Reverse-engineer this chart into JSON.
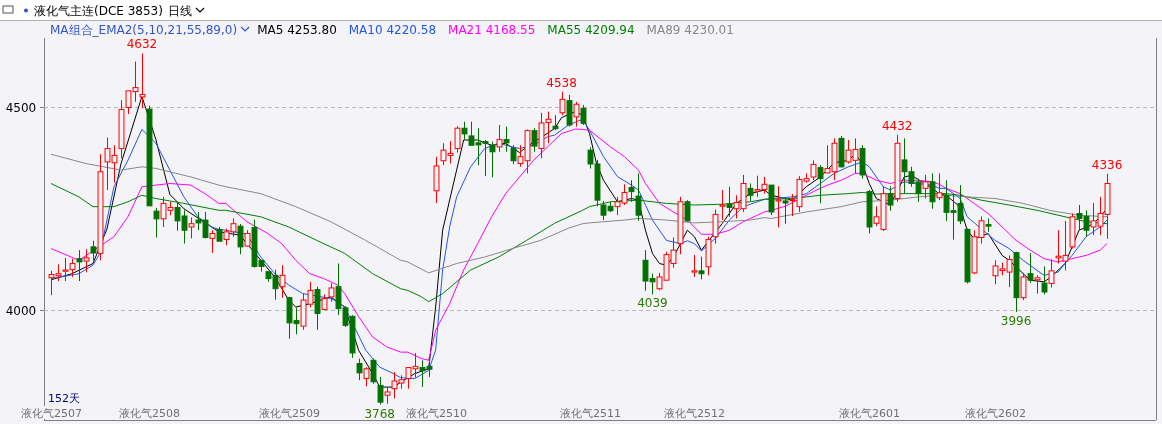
{
  "chart_data": {
    "type": "candlestick",
    "title": "液化气主连(DCE 3853)",
    "subtitle": "日线",
    "legend_title": "MA组合_EMA2(5,10,21,55,89,0)",
    "categories": [
      "液化气2507",
      null,
      null,
      null,
      null,
      null,
      null,
      null,
      null,
      null,
      null,
      null,
      null,
      null,
      "液化气2508",
      null,
      null,
      null,
      null,
      null,
      null,
      null,
      null,
      null,
      null,
      null,
      null,
      null,
      null,
      null,
      null,
      null,
      null,
      null,
      "液化气2509",
      null,
      null,
      null,
      null,
      null,
      null,
      null,
      null,
      null,
      null,
      null,
      null,
      null,
      null,
      null,
      null,
      null,
      null,
      null,
      null,
      "液化气2510",
      null,
      null,
      null,
      null,
      null,
      null,
      null,
      null,
      null,
      null,
      null,
      null,
      null,
      null,
      null,
      null,
      null,
      null,
      null,
      null,
      null,
      "液化气2511",
      null,
      null,
      null,
      null,
      null,
      null,
      null,
      null,
      null,
      null,
      null,
      null,
      null,
      null,
      "液化气2512",
      null,
      null,
      null,
      null,
      null,
      null,
      null,
      null,
      null,
      null,
      null,
      null,
      null,
      null,
      null,
      null,
      null,
      null,
      null,
      null,
      null,
      null,
      null,
      null,
      "液化气2601",
      null,
      null,
      null,
      null,
      null,
      null,
      null,
      null,
      null,
      null,
      null,
      null,
      null,
      null,
      null,
      null,
      null,
      "液化气2602",
      null,
      null,
      null,
      null,
      null,
      null,
      null,
      null,
      null,
      null,
      null,
      null,
      null,
      null,
      null,
      null
    ],
    "ohlc": [
      [
        4080,
        4097,
        4037,
        4088
      ],
      [
        4085,
        4113,
        4072,
        4090
      ],
      [
        4096,
        4129,
        4072,
        4099
      ],
      [
        4100,
        4127,
        4082,
        4115
      ],
      [
        4127,
        4148,
        4072,
        4119
      ],
      [
        4121,
        4150,
        4093,
        4129
      ],
      [
        4156,
        4171,
        4123,
        4141
      ],
      [
        4140,
        4384,
        4123,
        4341
      ],
      [
        4365,
        4425,
        4296,
        4398
      ],
      [
        4363,
        4406,
        4314,
        4381
      ],
      [
        4398,
        4517,
        4374,
        4494
      ],
      [
        4499,
        4540,
        4483,
        4540
      ],
      [
        4538,
        4612,
        4513,
        4548
      ],
      [
        4525,
        4632,
        4497,
        4531
      ],
      [
        4495,
        4503,
        4257,
        4257
      ],
      [
        4244,
        4252,
        4179,
        4225
      ],
      [
        4225,
        4279,
        4205,
        4263
      ],
      [
        4246,
        4267,
        4234,
        4253
      ],
      [
        4253,
        4267,
        4196,
        4220
      ],
      [
        4232,
        4246,
        4164,
        4197
      ],
      [
        4205,
        4228,
        4177,
        4213
      ],
      [
        4222,
        4242,
        4197,
        4215
      ],
      [
        4222,
        4242,
        4177,
        4179
      ],
      [
        4177,
        4197,
        4141,
        4189
      ],
      [
        4199,
        4205,
        4170,
        4170
      ],
      [
        4174,
        4201,
        4160,
        4193
      ],
      [
        4193,
        4226,
        4181,
        4213
      ],
      [
        4207,
        4212,
        4138,
        4156
      ],
      [
        4158,
        4197,
        4156,
        4189
      ],
      [
        4204,
        4223,
        4105,
        4108
      ],
      [
        4123,
        4123,
        4095,
        4108
      ],
      [
        4095,
        4095,
        4070,
        4078
      ],
      [
        4086,
        4100,
        4026,
        4053
      ],
      [
        4058,
        4111,
        4031,
        4086
      ],
      [
        4031,
        4033,
        3930,
        3969
      ],
      [
        3975,
        4007,
        3941,
        3967
      ],
      [
        3961,
        4041,
        3952,
        4025
      ],
      [
        4015,
        4070,
        4007,
        4049
      ],
      [
        4051,
        4058,
        3952,
        3992
      ],
      [
        4002,
        4039,
        4002,
        4029
      ],
      [
        4033,
        4066,
        4021,
        4055
      ],
      [
        4058,
        4115,
        3988,
        4004
      ],
      [
        4006,
        4010,
        3959,
        3963
      ],
      [
        3985,
        3988,
        3883,
        3895
      ],
      [
        3869,
        3881,
        3828,
        3846
      ],
      [
        3832,
        3860,
        3813,
        3856
      ],
      [
        3877,
        3881,
        3819,
        3824
      ],
      [
        3815,
        3836,
        3768,
        3774
      ],
      [
        3791,
        3811,
        3770,
        3799
      ],
      [
        3807,
        3848,
        3783,
        3826
      ],
      [
        3821,
        3840,
        3807,
        3829
      ],
      [
        3832,
        3860,
        3807,
        3859
      ],
      [
        3856,
        3895,
        3834,
        3862
      ],
      [
        3859,
        3877,
        3811,
        3851
      ],
      [
        3862,
        3885,
        3836,
        3855
      ],
      [
        4294,
        4378,
        4264,
        4355
      ],
      [
        4368,
        4411,
        4357,
        4394
      ],
      [
        4381,
        4416,
        4361,
        4386
      ],
      [
        4398,
        4453,
        4388,
        4448
      ],
      [
        4448,
        4464,
        4420,
        4434
      ],
      [
        4429,
        4464,
        4406,
        4406
      ],
      [
        4412,
        4448,
        4357,
        4407
      ],
      [
        4415,
        4419,
        4330,
        4411
      ],
      [
        4406,
        4415,
        4327,
        4390
      ],
      [
        4402,
        4456,
        4390,
        4420
      ],
      [
        4420,
        4452,
        4390,
        4412
      ],
      [
        4398,
        4406,
        4360,
        4368
      ],
      [
        4361,
        4406,
        4353,
        4378
      ],
      [
        4368,
        4445,
        4337,
        4442
      ],
      [
        4442,
        4448,
        4390,
        4404
      ],
      [
        4398,
        4486,
        4374,
        4461
      ],
      [
        4462,
        4489,
        4411,
        4470
      ],
      [
        4453,
        4480,
        4443,
        4447
      ],
      [
        4486,
        4538,
        4480,
        4519
      ],
      [
        4516,
        4530,
        4452,
        4456
      ],
      [
        4476,
        4513,
        4452,
        4507
      ],
      [
        4497,
        4505,
        4456,
        4460
      ],
      [
        4394,
        4401,
        4349,
        4360
      ],
      [
        4360,
        4370,
        4256,
        4271
      ],
      [
        4259,
        4269,
        4222,
        4234
      ],
      [
        4256,
        4267,
        4242,
        4245
      ],
      [
        4255,
        4279,
        4234,
        4267
      ],
      [
        4264,
        4310,
        4259,
        4290
      ],
      [
        4302,
        4320,
        4267,
        4292
      ],
      [
        4281,
        4337,
        4220,
        4234
      ],
      [
        4123,
        4148,
        4048,
        4072
      ],
      [
        4078,
        4090,
        4039,
        4070
      ],
      [
        4053,
        4092,
        4049,
        4082
      ],
      [
        4074,
        4144,
        4074,
        4137
      ],
      [
        4115,
        4179,
        4105,
        4148
      ],
      [
        4164,
        4279,
        4138,
        4267
      ],
      [
        4267,
        4271,
        4218,
        4220
      ],
      [
        4094,
        4136,
        4082,
        4097
      ],
      [
        4097,
        4132,
        4076,
        4090
      ],
      [
        4107,
        4181,
        4086,
        4174
      ],
      [
        4181,
        4248,
        4164,
        4236
      ],
      [
        4256,
        4296,
        4222,
        4259
      ],
      [
        4261,
        4304,
        4230,
        4253
      ],
      [
        4250,
        4283,
        4226,
        4265
      ],
      [
        4250,
        4333,
        4242,
        4312
      ],
      [
        4300,
        4312,
        4269,
        4283
      ],
      [
        4293,
        4331,
        4279,
        4297
      ],
      [
        4297,
        4328,
        4287,
        4310
      ],
      [
        4308,
        4308,
        4234,
        4242
      ],
      [
        4269,
        4305,
        4204,
        4272
      ],
      [
        4269,
        4275,
        4213,
        4264
      ],
      [
        4270,
        4286,
        4232,
        4272
      ],
      [
        4255,
        4330,
        4242,
        4322
      ],
      [
        4318,
        4337,
        4314,
        4324
      ],
      [
        4328,
        4369,
        4320,
        4359
      ],
      [
        4351,
        4357,
        4263,
        4324
      ],
      [
        4338,
        4406,
        4337,
        4349
      ],
      [
        4341,
        4423,
        4320,
        4411
      ],
      [
        4423,
        4429,
        4351,
        4353
      ],
      [
        4365,
        4419,
        4361,
        4394
      ],
      [
        4369,
        4423,
        4337,
        4396
      ],
      [
        4398,
        4406,
        4324,
        4333
      ],
      [
        4292,
        4296,
        4189,
        4205
      ],
      [
        4214,
        4256,
        4207,
        4230
      ],
      [
        4199,
        4305,
        4195,
        4287
      ],
      [
        4287,
        4305,
        4245,
        4259
      ],
      [
        4275,
        4432,
        4267,
        4411
      ],
      [
        4370,
        4423,
        4287,
        4341
      ],
      [
        4341,
        4353,
        4304,
        4312
      ],
      [
        4316,
        4324,
        4267,
        4287
      ],
      [
        4300,
        4333,
        4275,
        4316
      ],
      [
        4316,
        4337,
        4250,
        4267
      ],
      [
        4277,
        4337,
        4271,
        4289
      ],
      [
        4283,
        4320,
        4220,
        4241
      ],
      [
        4245,
        4286,
        4174,
        4241
      ],
      [
        4263,
        4308,
        4212,
        4220
      ],
      [
        4199,
        4201,
        4066,
        4070
      ],
      [
        4092,
        4197,
        4089,
        4181
      ],
      [
        4179,
        4231,
        4164,
        4220
      ],
      [
        4211,
        4226,
        4193,
        4207
      ],
      [
        4085,
        4123,
        4064,
        4109
      ],
      [
        4098,
        4117,
        4086,
        4102
      ],
      [
        4094,
        4135,
        4057,
        4125
      ],
      [
        4142,
        4144,
        3996,
        4031
      ],
      [
        4031,
        4092,
        4025,
        4082
      ],
      [
        4090,
        4141,
        4067,
        4074
      ],
      [
        4075,
        4086,
        4041,
        4080
      ],
      [
        4067,
        4108,
        4039,
        4045
      ],
      [
        4066,
        4125,
        4056,
        4097
      ],
      [
        4129,
        4197,
        4115,
        4133
      ],
      [
        4121,
        4220,
        4098,
        4135
      ],
      [
        4156,
        4238,
        4152,
        4230
      ],
      [
        4238,
        4259,
        4197,
        4226
      ],
      [
        4231,
        4246,
        4181,
        4197
      ],
      [
        4205,
        4264,
        4185,
        4220
      ],
      [
        4207,
        4279,
        4185,
        4238
      ],
      [
        4236,
        4336,
        4176,
        4312
      ]
    ],
    "series": [
      {
        "type": "line",
        "name": "MA5 4253.80",
        "color": "#000000",
        "values": [
          4075,
          null,
          null,
          4090,
          null,
          null,
          4115,
          null,
          4200,
          null,
          4360,
          null,
          null,
          4526,
          null,
          4420,
          null,
          4285,
          null,
          4250,
          null,
          null,
          null,
          null,
          4193,
          null,
          null,
          4185,
          null,
          null,
          null,
          null,
          4082,
          null,
          4025,
          4008,
          null,
          4016,
          null,
          null,
          4033,
          null,
          4008,
          null,
          3901,
          null,
          3844,
          3811,
          null,
          3811,
          3823,
          null,
          3844,
          null,
          3856,
          4008,
          4197,
          null,
          4345,
          4419,
          null,
          4419,
          null,
          4406,
          null,
          4411,
          null,
          4388,
          4402,
          null,
          null,
          null,
          4447,
          4474,
          null,
          4489,
          4480,
          4435,
          4361,
          4320,
          null,
          4267,
          null,
          4275,
          4271,
          4197,
          4140,
          4115,
          4111,
          4131,
          null,
          4197,
          4181,
          4148,
          null,
          null,
          4214,
          null,
          4263,
          null,
          4287,
          null,
          4296,
          4283,
          null,
          4275,
          4271,
          null,
          4304,
          null,
          4328,
          null,
          4363,
          null,
          4369,
          4384,
          4361,
          4312,
          4275,
          null,
          4259,
          null,
          4328,
          4332,
          null,
          4312,
          null,
          4287,
          4283,
          null,
          4254,
          4197,
          4176,
          null,
          4189,
          null,
          4135,
          4123,
          null,
          null,
          4074,
          null,
          4070,
          4082,
          null,
          4115,
          4156,
          4197,
          null,
          4212,
          4230,
          4250
        ]
      },
      {
        "type": "line",
        "name": "MA10 4220.58",
        "color": "#2255ee",
        "values": [
          4078,
          null,
          null,
          null,
          4090,
          null,
          4111,
          4140,
          null,
          4304,
          null,
          4369,
          null,
          4445,
          null,
          4411,
          null,
          4345,
          null,
          4279,
          null,
          4230,
          null,
          4205,
          4199,
          4197,
          null,
          null,
          4187,
          null,
          4131,
          null,
          4090,
          null,
          4062,
          null,
          4041,
          null,
          null,
          null,
          4029,
          4021,
          4008,
          null,
          null,
          3902,
          null,
          3860,
          null,
          3844,
          3834,
          null,
          3832,
          null,
          3852,
          3902,
          4099,
          4205,
          4279,
          null,
          4353,
          null,
          4398,
          null,
          4411,
          null,
          4402,
          4398,
          null,
          4406,
          null,
          4427,
          4431,
          null,
          4456,
          null,
          4470,
          4443,
          null,
          4378,
          null,
          4329,
          null,
          4308,
          4296,
          null,
          4222,
          null,
          4172,
          null,
          4164,
          4171,
          4164,
          4146,
          null,
          4177,
          null,
          4222,
          null,
          4255,
          null,
          4267,
          4273,
          4275,
          null,
          null,
          4279,
          null,
          4287,
          null,
          4312,
          null,
          4337,
          null,
          4353,
          null,
          4365,
          4353,
          null,
          4304,
          4296,
          null,
          4316,
          null,
          4312,
          null,
          4308,
          4300,
          4300,
          null,
          4275,
          4230,
          null,
          null,
          null,
          4172,
          null,
          4152,
          null,
          4123,
          null,
          4098,
          4086,
          null,
          4094,
          4115,
          4135,
          null,
          4181,
          null,
          4205,
          4222
        ]
      },
      {
        "type": "line",
        "name": "MA21 4168.55",
        "color": "#ff00ff",
        "values": [
          4152,
          null,
          null,
          null,
          4123,
          null,
          null,
          null,
          null,
          4181,
          null,
          4230,
          null,
          4304,
          null,
          4308,
          null,
          4312,
          null,
          null,
          4308,
          null,
          4287,
          null,
          4263,
          4263,
          null,
          null,
          4218,
          null,
          null,
          4189,
          null,
          4164,
          null,
          4123,
          null,
          4090,
          null,
          4078,
          null,
          4062,
          4041,
          null,
          3984,
          null,
          3934,
          null,
          3910,
          null,
          3897,
          3897,
          null,
          3881,
          3877,
          3951,
          null,
          4016,
          null,
          4099,
          null,
          4164,
          null,
          4230,
          null,
          4287,
          null,
          4328,
          null,
          4369,
          null,
          4402,
          null,
          4435,
          null,
          4446,
          4445,
          4443,
          null,
          null,
          4402,
          null,
          4378,
          null,
          4345,
          4312,
          null,
          4263,
          null,
          4242,
          null,
          4222,
          null,
          4187,
          null,
          4187,
          null,
          4197,
          null,
          4218,
          null,
          4234,
          4242,
          4246,
          null,
          4256,
          null,
          null,
          null,
          4292,
          null,
          4308,
          null,
          4320,
          null,
          4337,
          4337,
          null,
          4320,
          null,
          4312,
          null,
          4320,
          null,
          4320,
          null,
          4316,
          4310,
          4300,
          null,
          4287,
          null,
          4263,
          null,
          4238,
          null,
          4205,
          null,
          4172,
          null,
          4148,
          null,
          4127,
          null,
          4119,
          null,
          4127,
          null,
          4135,
          null,
          4148,
          4164
        ]
      },
      {
        "type": "line",
        "name": "MA55 4209.94",
        "color": "#008000",
        "values": [
          4312,
          null,
          null,
          null,
          4279,
          null,
          4255,
          null,
          null,
          4255,
          null,
          4267,
          null,
          4283,
          null,
          4275,
          null,
          null,
          null,
          4263,
          null,
          null,
          null,
          null,
          4246,
          4246,
          null,
          null,
          null,
          null,
          4230,
          null,
          null,
          null,
          4205,
          null,
          null,
          null,
          4172,
          null,
          null,
          null,
          4140,
          null,
          null,
          null,
          4090,
          null,
          null,
          null,
          4053,
          4049,
          null,
          4033,
          4021,
          null,
          4041,
          null,
          null,
          null,
          4099,
          null,
          null,
          null,
          4131,
          null,
          null,
          null,
          4172,
          null,
          null,
          null,
          4214,
          null,
          null,
          null,
          4246,
          4255,
          null,
          null,
          4267,
          null,
          null,
          null,
          4271,
          null,
          null,
          null,
          4263,
          null,
          null,
          null,
          4259,
          null,
          null,
          null,
          4261,
          null,
          null,
          null,
          4267,
          null,
          4273,
          null,
          null,
          null,
          4275,
          null,
          null,
          null,
          4283,
          null,
          null,
          null,
          4287,
          null,
          4290,
          null,
          4286,
          null,
          null,
          null,
          4287,
          null,
          null,
          null,
          4287,
          4287,
          4287,
          null,
          4283,
          null,
          null,
          4271,
          null,
          null,
          null,
          4259,
          null,
          null,
          null,
          4246,
          null,
          null,
          null,
          4230,
          null,
          null,
          4218,
          null,
          null,
          4213
        ]
      },
      {
        "type": "line",
        "name": "MA89 4230.01",
        "color": "#888888",
        "values": [
          4384,
          null,
          null,
          null,
          null,
          4361,
          null,
          null,
          null,
          null,
          4345,
          null,
          null,
          4353,
          null,
          4349,
          null,
          null,
          null,
          null,
          4328,
          null,
          null,
          null,
          4308,
          4304,
          null,
          null,
          null,
          null,
          4287,
          null,
          null,
          null,
          null,
          4255,
          null,
          null,
          null,
          null,
          4218,
          null,
          null,
          null,
          null,
          4172,
          null,
          null,
          null,
          null,
          4123,
          4119,
          null,
          null,
          4092,
          null,
          null,
          null,
          4115,
          null,
          null,
          null,
          4131,
          null,
          null,
          null,
          4152,
          null,
          null,
          null,
          4172,
          null,
          null,
          null,
          4202,
          null,
          4213,
          4215,
          null,
          null,
          null,
          null,
          4222,
          null,
          4226,
          null,
          null,
          null,
          4222,
          null,
          null,
          null,
          4215,
          null,
          null,
          null,
          4218,
          null,
          null,
          null,
          4222,
          null,
          4228,
          4226,
          null,
          null,
          null,
          null,
          4242,
          null,
          null,
          null,
          null,
          4255,
          null,
          null,
          4267,
          null,
          null,
          null,
          4271,
          null,
          null,
          null,
          4279,
          null,
          null,
          4283,
          4283,
          null,
          null,
          4279,
          null,
          null,
          null,
          4275,
          null,
          null,
          null,
          4263,
          null,
          null,
          null,
          4245,
          null,
          null,
          null,
          4234,
          null,
          null,
          null,
          4230
        ]
      }
    ],
    "ylim": [
      3730,
      4670
    ],
    "yticks": [
      4000,
      4500
    ],
    "grid": "y",
    "legend": "top left",
    "annotations": [
      "4632",
      "3768",
      "4538",
      "4039",
      "4432",
      "3996",
      "4336",
      "152天"
    ]
  }
}
